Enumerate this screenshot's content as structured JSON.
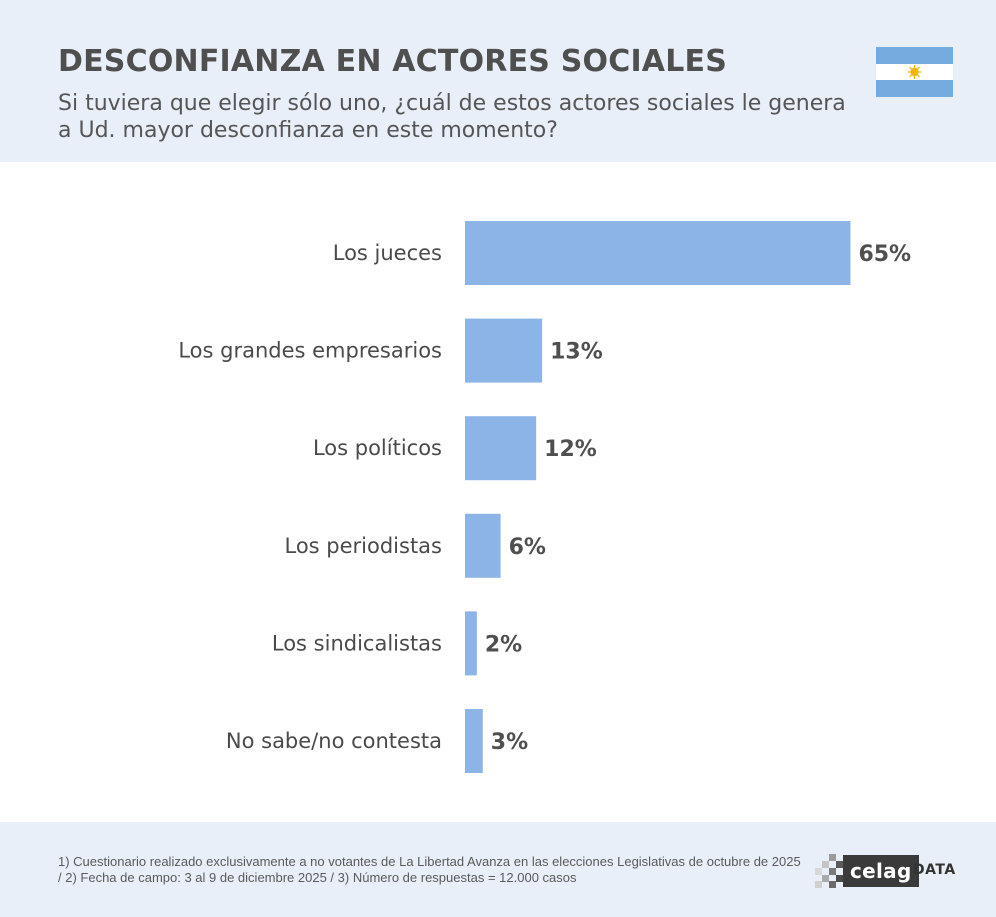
{
  "header": {
    "title": "DESCONFIANZA EN ACTORES SOCIALES",
    "subtitle": "Si tuviera que elegir sólo uno, ¿cuál de estos actores sociales le genera a Ud. mayor desconfianza en este momento?",
    "flag_icon": "argentina-flag-icon",
    "colors": {
      "background": "#e9eff8",
      "flag_blue": "#74acdf",
      "sun": "#f6b40e"
    }
  },
  "chart_data": {
    "type": "bar",
    "orientation": "horizontal",
    "title": "DESCONFIANZA EN ACTORES SOCIALES",
    "categories": [
      "Los jueces",
      "Los grandes empresarios",
      "Los políticos",
      "Los periodistas",
      "Los sindicalistas",
      "No sabe/no contesta"
    ],
    "values": [
      65,
      13,
      12,
      6,
      2,
      3
    ],
    "value_labels": [
      "65%",
      "13%",
      "12%",
      "6%",
      "2%",
      "3%"
    ],
    "unit": "%",
    "xlim": [
      0,
      100
    ],
    "grid": false,
    "bar_color": "#8db4e7"
  },
  "footer": {
    "note": "1) Cuestionario realizado exclusivamente a no votantes de La Libertad Avanza en las elecciones Legislativas de octubre de 2025  /  2) Fecha de campo: 3 al 9 de diciembre 2025 /  3) Número de respuestas = 12.000 casos",
    "logo_text": "celag",
    "logo_suffix": "DATA"
  }
}
